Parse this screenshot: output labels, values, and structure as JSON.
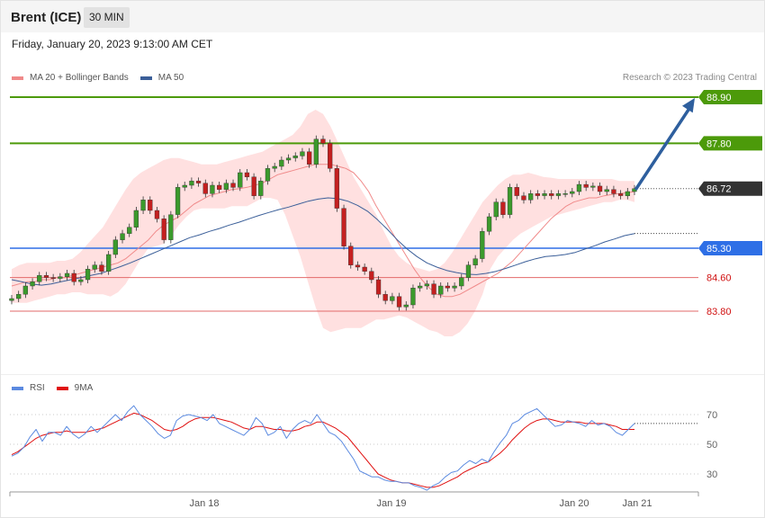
{
  "header": {
    "title": "Brent (ICE)",
    "timeframe": "30 MIN",
    "datetime": "Friday, January 20, 2023 9:13:00 AM CET"
  },
  "legend": {
    "ma20_label": "MA 20 + Bollinger Bands",
    "ma50_label": "MA 50",
    "copyright": "Research © 2023 Trading Central",
    "rsi_label": "RSI",
    "rsi_ma_label": "9MA"
  },
  "colors": {
    "ma20": "#f08a8a",
    "ma50": "#3b5f99",
    "band_fill": "#ffe0e0",
    "resistance": "#4c9a0a",
    "pivot": "#2e6fe6",
    "support": "#e26a6a",
    "current": "#333333",
    "arrow": "#2e5f9e",
    "candle_up": "#3b9a2c",
    "candle_down": "#c42020",
    "rsi": "#5b8ae0",
    "rsi_ma": "#e01010"
  },
  "chart_data": [
    {
      "type": "candlestick",
      "ylim": [
        83.2,
        89.3
      ],
      "x_ticks": [
        "Jan 18",
        "Jan 19",
        "Jan 20",
        "Jan 21"
      ],
      "levels": [
        {
          "value": 88.9,
          "label": "88.90",
          "kind": "resistance"
        },
        {
          "value": 87.8,
          "label": "87.80",
          "kind": "resistance"
        },
        {
          "value": 86.72,
          "label": "86.72",
          "kind": "current"
        },
        {
          "value": 85.3,
          "label": "85.30",
          "kind": "pivot"
        },
        {
          "value": 84.6,
          "label": "84.60",
          "kind": "support"
        },
        {
          "value": 83.8,
          "label": "83.80",
          "kind": "support"
        }
      ],
      "close": [
        84.1,
        84.2,
        84.4,
        84.5,
        84.65,
        84.6,
        84.58,
        84.62,
        84.7,
        84.5,
        84.55,
        84.8,
        84.9,
        84.75,
        85.15,
        85.5,
        85.65,
        85.8,
        86.2,
        86.45,
        86.2,
        86.0,
        85.5,
        86.1,
        86.75,
        86.8,
        86.9,
        86.85,
        86.6,
        86.8,
        86.7,
        86.85,
        86.75,
        87.1,
        87.0,
        86.55,
        86.9,
        87.2,
        87.25,
        87.4,
        87.45,
        87.5,
        87.6,
        87.3,
        87.9,
        87.8,
        87.2,
        86.25,
        85.35,
        84.9,
        84.85,
        84.75,
        84.55,
        84.2,
        84.05,
        84.15,
        83.9,
        83.95,
        84.35,
        84.4,
        84.45,
        84.2,
        84.4,
        84.35,
        84.4,
        84.6,
        84.9,
        85.05,
        85.7,
        86.05,
        86.4,
        86.1,
        86.75,
        86.55,
        86.45,
        86.6,
        86.55,
        86.6,
        86.55,
        86.6,
        86.6,
        86.65,
        86.82,
        86.75,
        86.78,
        86.65,
        86.7,
        86.6,
        86.55,
        86.65,
        86.72
      ],
      "ma20": [
        84.4,
        84.45,
        84.5,
        84.5,
        84.55,
        84.55,
        84.6,
        84.6,
        84.65,
        84.7,
        84.75,
        84.8,
        84.85,
        84.9,
        84.95,
        85.05,
        85.2,
        85.35,
        85.5,
        85.7,
        85.85,
        85.95,
        86.05,
        86.2,
        86.35,
        86.45,
        86.55,
        86.6,
        86.65,
        86.7,
        86.72,
        86.75,
        86.8,
        86.85,
        86.95,
        87.05,
        87.1,
        87.15,
        87.2,
        87.25,
        87.3,
        87.3,
        87.3,
        87.25,
        87.2,
        87.1,
        86.9,
        86.65,
        86.3,
        86.0,
        85.7,
        85.4,
        85.1,
        84.8,
        84.55,
        84.35,
        84.2,
        84.15,
        84.15,
        84.2,
        84.3,
        84.4,
        84.5,
        84.6,
        84.7,
        84.85,
        85.0,
        85.2,
        85.4,
        85.6,
        85.8,
        86.0,
        86.15,
        86.3,
        86.4,
        86.45,
        86.5,
        86.5,
        86.55,
        86.58,
        86.6,
        86.62,
        86.65
      ],
      "bb_upper": [
        84.8,
        84.9,
        84.95,
        84.95,
        84.95,
        84.95,
        85.0,
        85.0,
        85.05,
        85.2,
        85.4,
        85.6,
        85.8,
        86.1,
        86.4,
        86.7,
        86.95,
        87.1,
        87.2,
        87.3,
        87.4,
        87.45,
        87.45,
        87.4,
        87.35,
        87.3,
        87.3,
        87.3,
        87.35,
        87.4,
        87.45,
        87.5,
        87.55,
        87.6,
        87.7,
        87.8,
        87.9,
        88.0,
        88.2,
        88.5,
        88.6,
        88.5,
        88.2,
        87.8,
        87.4,
        87.0,
        86.7,
        86.4,
        86.1,
        85.7,
        85.35,
        85.1,
        84.95,
        84.85,
        84.8,
        84.75,
        84.8,
        84.95,
        85.2,
        85.5,
        85.8,
        86.1,
        86.4,
        86.6,
        86.8,
        86.95,
        87.05,
        87.05,
        87.1,
        87.05,
        87.0,
        86.98,
        86.95,
        86.95,
        86.95,
        86.95,
        86.95,
        86.95,
        86.95,
        86.95,
        86.9,
        86.9,
        86.9
      ],
      "bb_lower": [
        84.0,
        84.0,
        84.0,
        84.05,
        84.1,
        84.15,
        84.2,
        84.2,
        84.25,
        84.25,
        84.2,
        84.2,
        84.2,
        84.15,
        84.25,
        84.45,
        84.75,
        85.05,
        85.3,
        85.35,
        85.4,
        85.6,
        85.85,
        86.05,
        86.2,
        86.25,
        86.25,
        86.25,
        86.25,
        86.3,
        86.3,
        86.3,
        86.4,
        86.5,
        86.5,
        86.45,
        86.1,
        85.6,
        85.1,
        84.5,
        83.9,
        83.4,
        83.3,
        83.35,
        83.4,
        83.4,
        83.4,
        83.5,
        83.6,
        83.6,
        83.65,
        83.7,
        83.65,
        83.55,
        83.45,
        83.35,
        83.3,
        83.2,
        83.2,
        83.3,
        83.5,
        83.8,
        84.2,
        84.8,
        85.1,
        85.3,
        85.5,
        85.65,
        85.75,
        85.85,
        85.95,
        86.05,
        86.1,
        86.15,
        86.2,
        86.25,
        86.3,
        86.35,
        86.4,
        86.4,
        86.45,
        86.45,
        86.4
      ],
      "ma50": [
        84.55,
        84.5,
        84.45,
        84.42,
        84.45,
        84.5,
        84.55,
        84.6,
        84.65,
        84.7,
        84.78,
        84.86,
        84.95,
        85.05,
        85.15,
        85.25,
        85.35,
        85.45,
        85.55,
        85.62,
        85.7,
        85.77,
        85.85,
        85.92,
        86.0,
        86.08,
        86.15,
        86.22,
        86.28,
        86.35,
        86.42,
        86.47,
        86.5,
        86.48,
        86.42,
        86.32,
        86.18,
        85.98,
        85.75,
        85.5,
        85.28,
        85.1,
        84.95,
        84.85,
        84.77,
        84.72,
        84.68,
        84.67,
        84.7,
        84.75,
        84.82,
        84.9,
        84.98,
        85.05,
        85.1,
        85.12,
        85.15,
        85.2,
        85.28,
        85.36,
        85.45,
        85.52,
        85.6,
        85.65
      ],
      "arrow_target": 88.9
    },
    {
      "type": "line",
      "name": "RSI",
      "ylim": [
        20,
        80
      ],
      "y_ticks": [
        70,
        50,
        30
      ],
      "rsi": [
        42,
        44,
        48,
        55,
        60,
        52,
        58,
        58,
        56,
        62,
        57,
        54,
        57,
        62,
        58,
        62,
        66,
        70,
        66,
        72,
        76,
        70,
        66,
        62,
        57,
        54,
        56,
        66,
        69,
        70,
        69,
        68,
        66,
        70,
        64,
        62,
        60,
        58,
        56,
        60,
        68,
        64,
        56,
        58,
        62,
        54,
        60,
        64,
        66,
        64,
        70,
        64,
        58,
        56,
        52,
        46,
        40,
        32,
        30,
        28,
        28,
        26,
        25,
        25,
        24,
        24,
        22,
        21,
        19,
        22,
        24,
        28,
        31,
        32,
        36,
        39,
        37,
        40,
        38,
        45,
        51,
        56,
        64,
        66,
        70,
        72,
        74,
        70,
        66,
        62,
        63,
        66,
        65,
        64,
        62,
        66,
        63,
        64,
        62,
        58,
        56,
        60,
        64
      ],
      "rsi_ma": [
        43,
        45,
        48,
        51,
        54,
        56,
        57,
        58,
        58,
        59,
        58,
        58,
        58,
        59,
        60,
        61,
        63,
        65,
        67,
        69,
        71,
        70,
        68,
        66,
        63,
        60,
        59,
        60,
        62,
        65,
        67,
        68,
        68,
        68,
        67,
        66,
        65,
        63,
        61,
        60,
        62,
        62,
        61,
        60,
        60,
        59,
        59,
        60,
        62,
        63,
        65,
        65,
        63,
        61,
        58,
        55,
        50,
        45,
        40,
        35,
        30,
        28,
        26,
        25,
        24,
        24,
        23,
        22,
        21,
        21,
        22,
        24,
        26,
        28,
        31,
        33,
        35,
        37,
        38,
        41,
        44,
        48,
        53,
        57,
        61,
        64,
        66,
        67,
        67,
        66,
        65,
        65,
        65,
        65,
        64,
        64,
        64,
        64,
        63,
        62,
        60,
        60,
        60
      ]
    }
  ]
}
